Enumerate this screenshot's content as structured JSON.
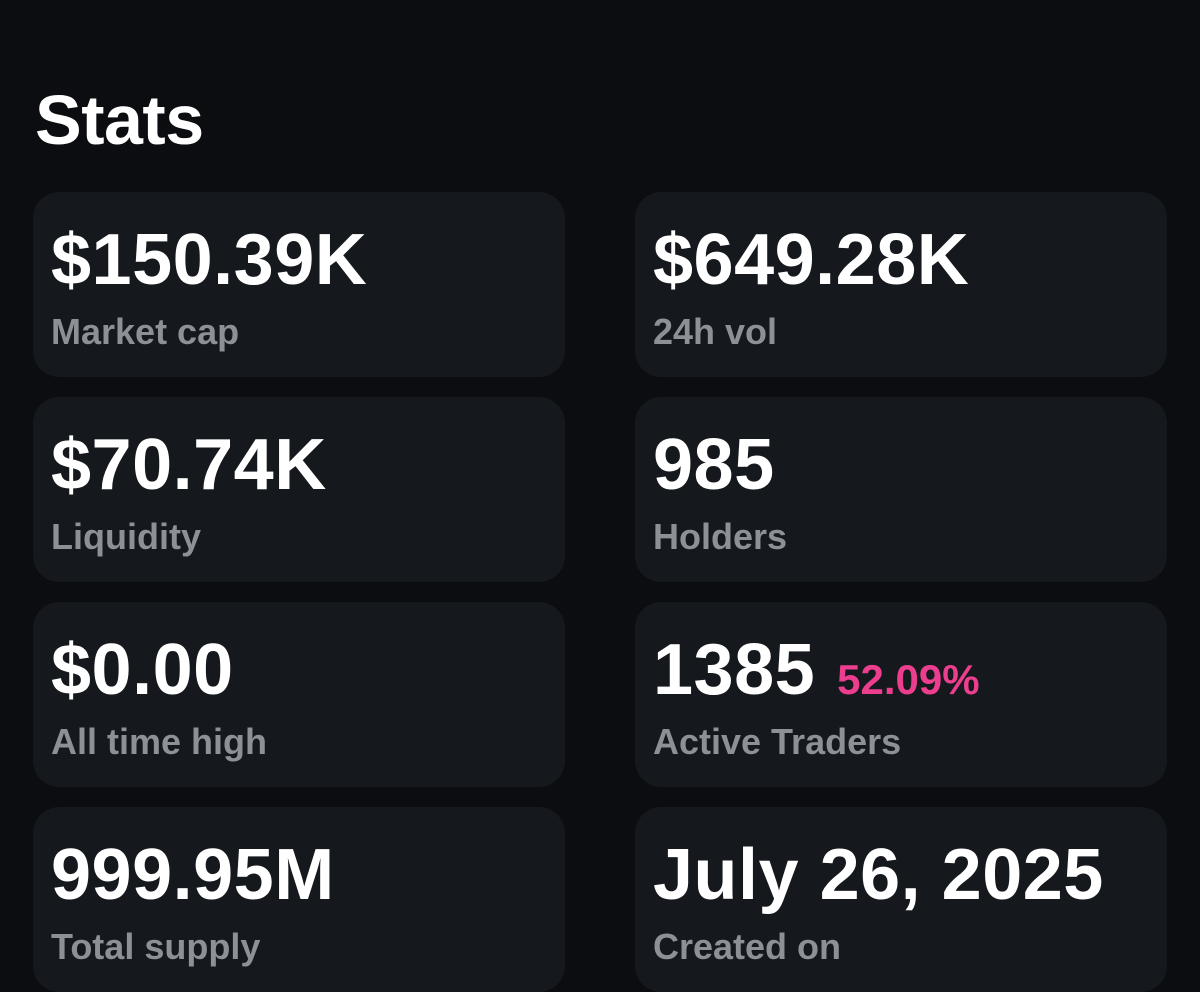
{
  "header": {
    "title": "Stats"
  },
  "stats": [
    {
      "value": "$150.39K",
      "label": "Market cap"
    },
    {
      "value": "$649.28K",
      "label": "24h vol"
    },
    {
      "value": "$70.74K",
      "label": "Liquidity"
    },
    {
      "value": "985",
      "label": "Holders"
    },
    {
      "value": "$0.00",
      "label": "All time high"
    },
    {
      "value": "1385",
      "change": "52.09%",
      "label": "Active Traders"
    },
    {
      "value": "999.95M",
      "label": "Total supply"
    },
    {
      "value": "July 26, 2025",
      "label": "Created on"
    }
  ],
  "colors": {
    "background": "#0b0d10",
    "card": "#15181c",
    "value_text": "#ffffff",
    "label_text": "#8d9197",
    "change_positive": "#ec3e8e"
  }
}
